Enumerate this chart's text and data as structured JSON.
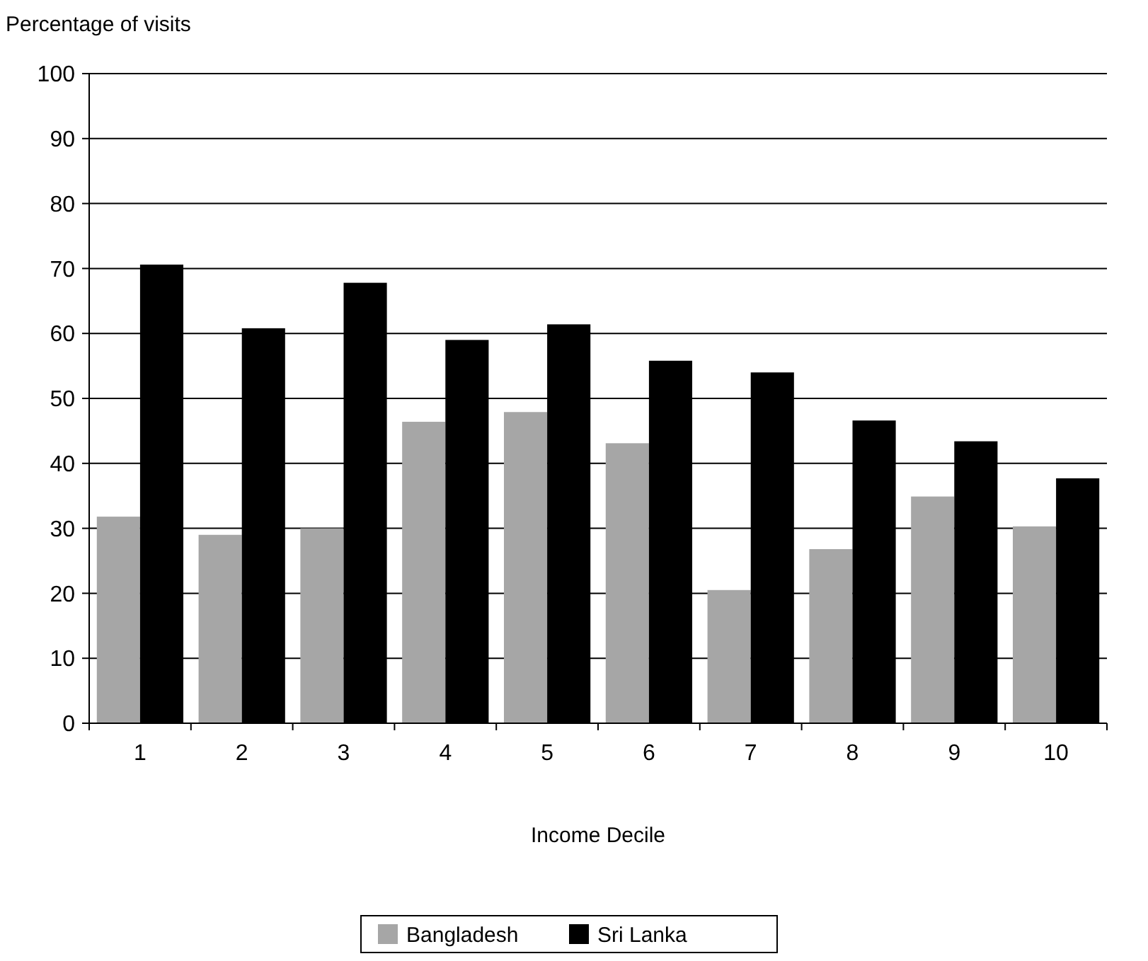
{
  "chart_data": {
    "type": "bar",
    "ylabel": "Percentage of visits",
    "xlabel": "Income Decile",
    "categories": [
      "1",
      "2",
      "3",
      "4",
      "5",
      "6",
      "7",
      "8",
      "9",
      "10"
    ],
    "series": [
      {
        "name": "Bangladesh",
        "color": "#a6a6a6",
        "values": [
          31.8,
          29,
          30,
          46.4,
          47.9,
          43.1,
          20.5,
          26.8,
          34.9,
          30.3
        ]
      },
      {
        "name": "Sri Lanka",
        "color": "#000000",
        "values": [
          70.6,
          60.8,
          67.8,
          59,
          61.4,
          55.8,
          54,
          46.6,
          43.4,
          37.7
        ]
      }
    ],
    "ylim": [
      0,
      100
    ],
    "yticks": [
      0,
      10,
      20,
      30,
      40,
      50,
      60,
      70,
      80,
      90,
      100
    ],
    "grid": "y",
    "legend": "bottom"
  }
}
